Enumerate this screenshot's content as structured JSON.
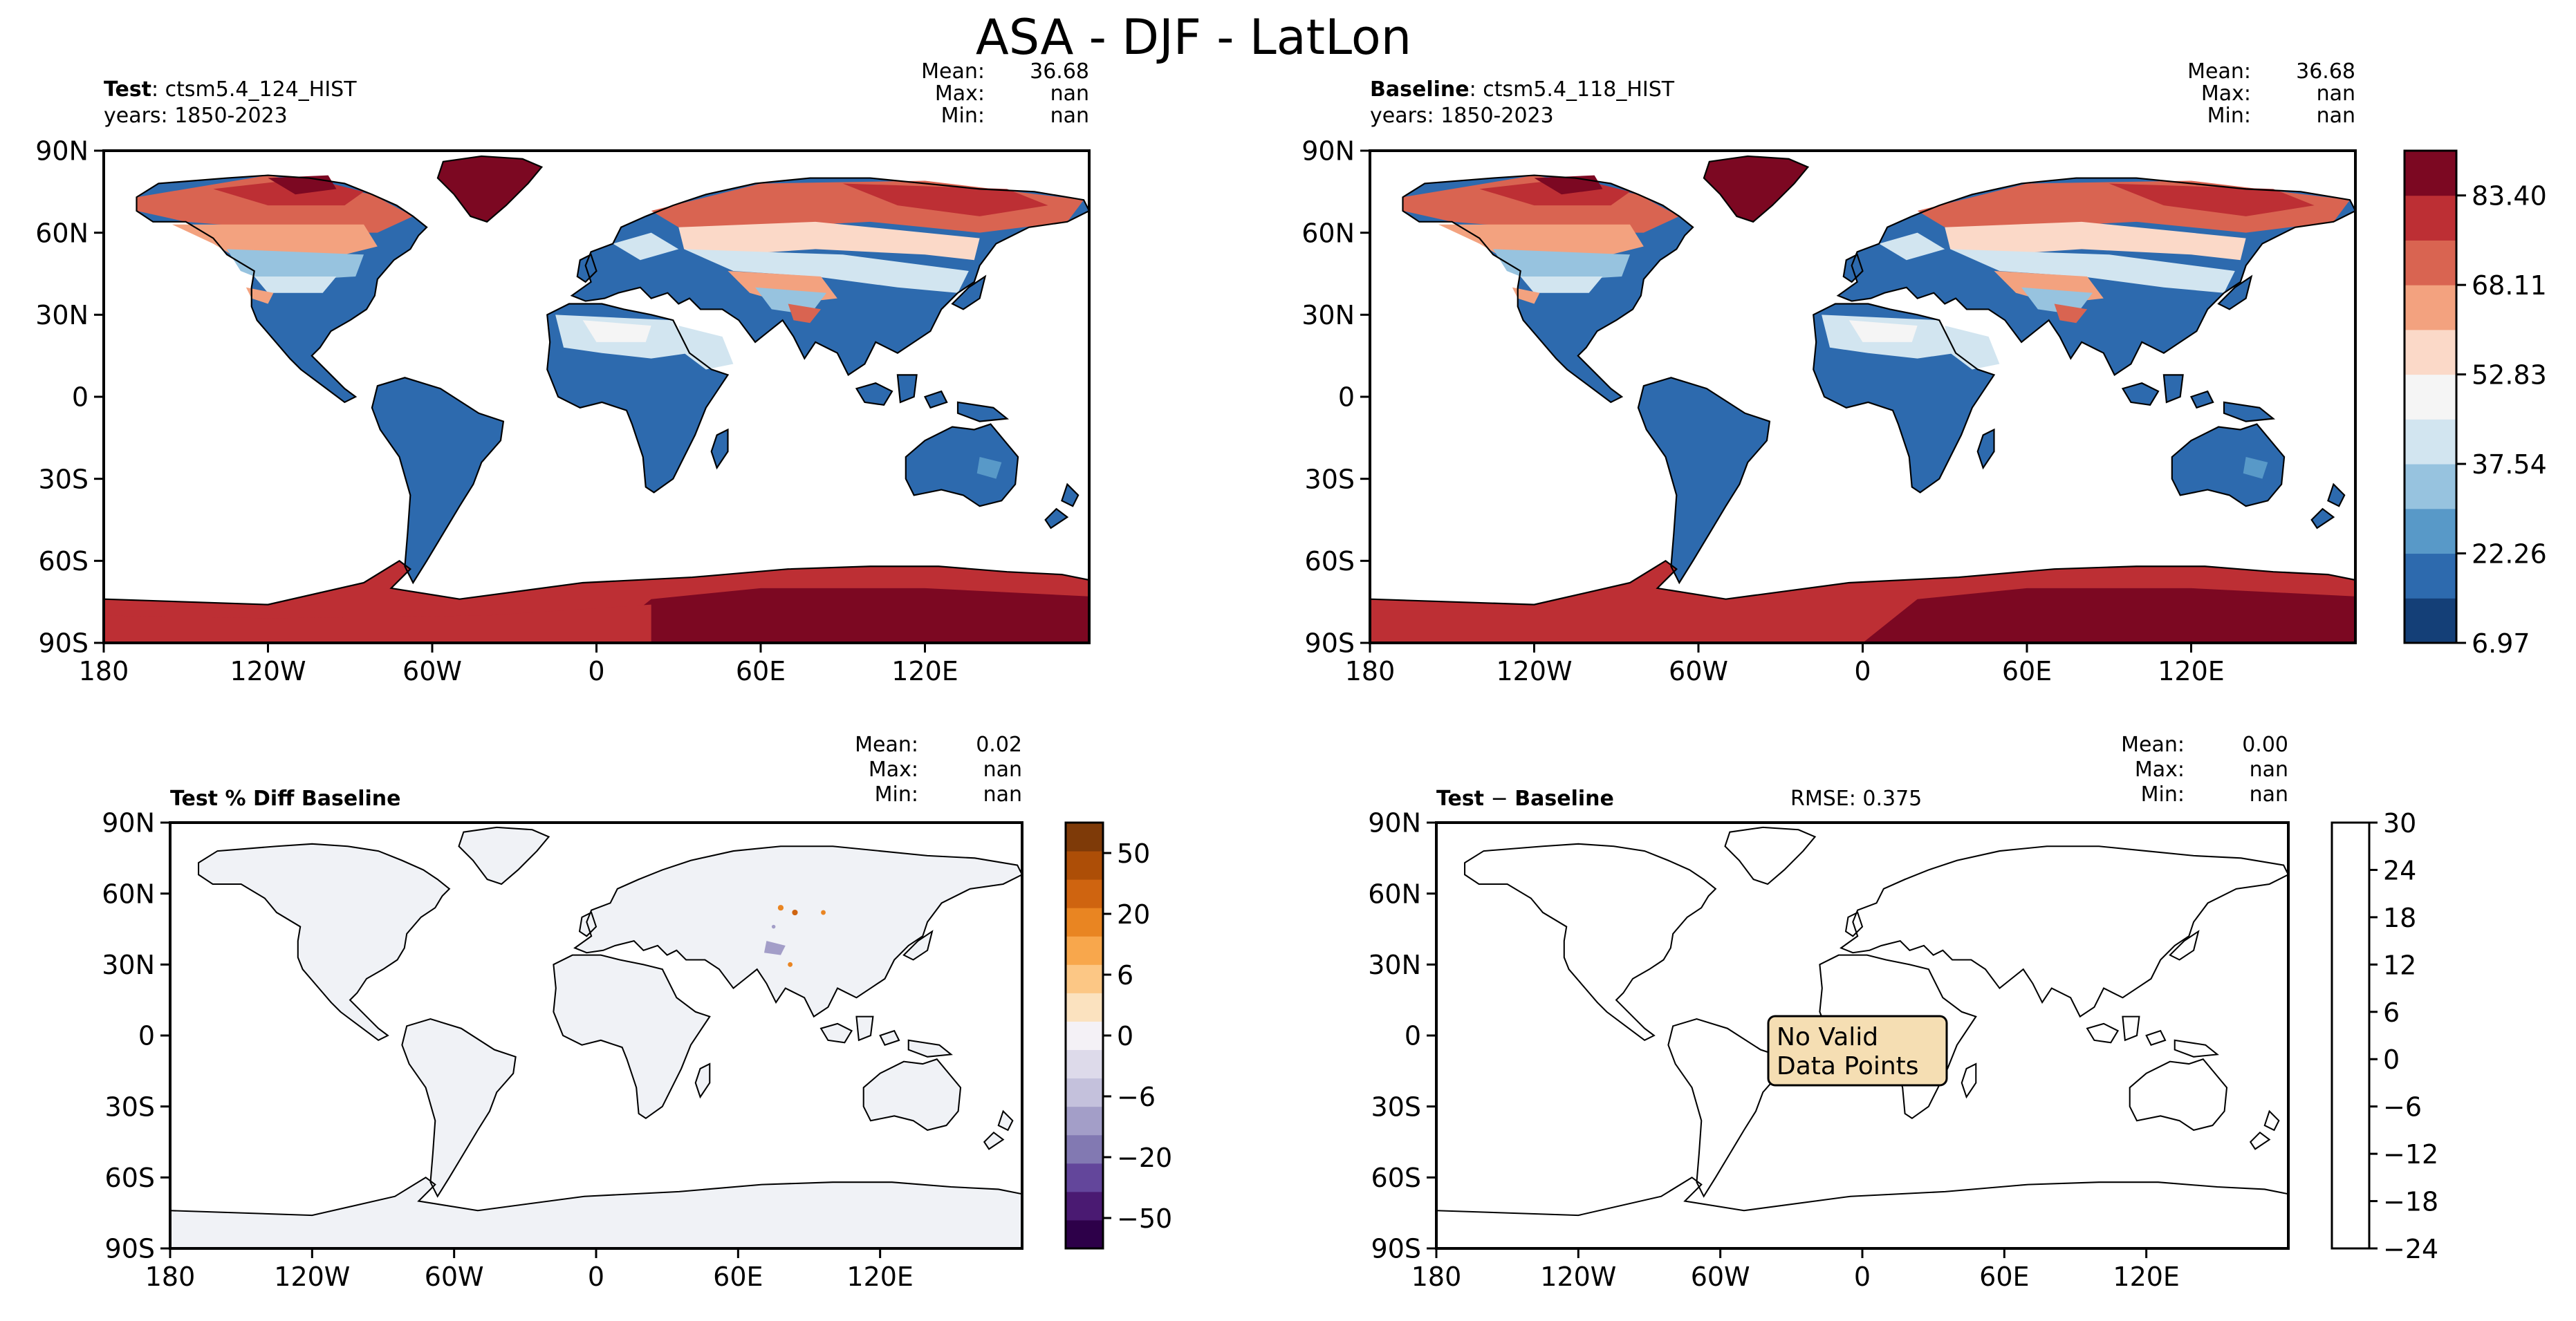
{
  "figure": {
    "title": "ASA - DJF - LatLon"
  },
  "chart_data": [
    {
      "type": "heatmap",
      "panel": "test",
      "header_bold": "Test",
      "header_rest": ": ctsm5.4_124_HIST",
      "years": "years: 1850-2023",
      "stats": [
        {
          "label": "Mean:",
          "value": "36.68"
        },
        {
          "label": "Max:",
          "value": "nan"
        },
        {
          "label": "Min:",
          "value": "nan"
        }
      ],
      "xticks": [
        "180",
        "120W",
        "60W",
        "0",
        "60E",
        "120E"
      ],
      "yticks": [
        "90N",
        "60N",
        "30N",
        "0",
        "30S",
        "60S",
        "90S"
      ],
      "colormap": "RdBu_r",
      "shared_colorbar": {
        "ticks": [
          "83.40",
          "68.11",
          "52.83",
          "37.54",
          "22.26",
          "6.97"
        ],
        "min": 6.97,
        "max": 91.04
      }
    },
    {
      "type": "heatmap",
      "panel": "baseline",
      "header_bold": "Baseline",
      "header_rest": ": ctsm5.4_118_HIST",
      "years": "years: 1850-2023",
      "stats": [
        {
          "label": "Mean:",
          "value": "36.68"
        },
        {
          "label": "Max:",
          "value": "nan"
        },
        {
          "label": "Min:",
          "value": "nan"
        }
      ],
      "xticks": [
        "180",
        "120W",
        "60W",
        "0",
        "60E",
        "120E"
      ],
      "yticks": [
        "90N",
        "60N",
        "30N",
        "0",
        "30S",
        "60S",
        "90S"
      ],
      "colormap": "RdBu_r"
    },
    {
      "type": "heatmap",
      "panel": "pct_diff",
      "header_bold": "Test % Diff Baseline",
      "stats": [
        {
          "label": "Mean:",
          "value": "0.02"
        },
        {
          "label": "Max:",
          "value": "nan"
        },
        {
          "label": "Min:",
          "value": "nan"
        }
      ],
      "xticks": [
        "180",
        "120W",
        "60W",
        "0",
        "60E",
        "120E"
      ],
      "yticks": [
        "90N",
        "60N",
        "30N",
        "0",
        "30S",
        "60S",
        "90S"
      ],
      "colormap": "PuOr_r",
      "colorbar": {
        "ticks": [
          "50",
          "20",
          "6",
          "0",
          "−6",
          "−20",
          "−50"
        ]
      }
    },
    {
      "type": "heatmap",
      "panel": "diff",
      "header_bold": "Test",
      "header_rest": " − ",
      "header_bold2": "Baseline",
      "rmse": "RMSE: 0.375",
      "stats": [
        {
          "label": "Mean:",
          "value": "0.00"
        },
        {
          "label": "Max:",
          "value": "nan"
        },
        {
          "label": "Min:",
          "value": "nan"
        }
      ],
      "xticks": [
        "180",
        "120W",
        "60W",
        "0",
        "60E",
        "120E"
      ],
      "yticks": [
        "90N",
        "60N",
        "30N",
        "0",
        "30S",
        "60S",
        "90S"
      ],
      "notice": [
        "No Valid",
        "Data Points"
      ],
      "colorbar": {
        "ticks": [
          "30",
          "24",
          "18",
          "12",
          "6",
          "0",
          "−6",
          "−12",
          "−18",
          "−24"
        ]
      }
    }
  ],
  "colors": {
    "rdbu": [
      "#143f77",
      "#2d6aae",
      "#5899c8",
      "#97c3df",
      "#d2e5f0",
      "#f5f5f5",
      "#fbd9c8",
      "#f3a27f",
      "#d96451",
      "#bd2f34",
      "#7c0822"
    ],
    "puor": [
      "#2d0049",
      "#4a1a72",
      "#63469b",
      "#8279b2",
      "#a39ec8",
      "#c4c1dc",
      "#dddaea",
      "#f4f1f6",
      "#fbe2bf",
      "#fcc785",
      "#f8a74c",
      "#e98522",
      "#cf6410",
      "#ad4e07",
      "#7e3a08"
    ],
    "land_pct": "#f0f2f6",
    "notice_fill": "#f5deb3"
  }
}
